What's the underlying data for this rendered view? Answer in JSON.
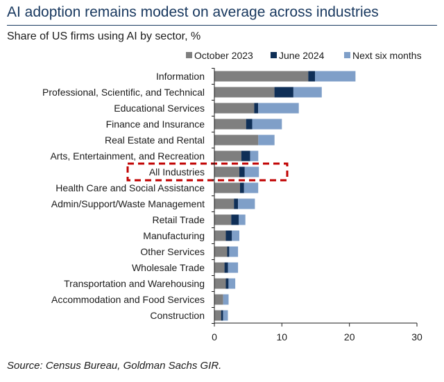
{
  "title": "AI adoption remains modest on average across industries",
  "subtitle": "Share of US firms using AI by sector, %",
  "source": "Source: Census Bureau, Goldman Sachs GIR.",
  "colors": {
    "October 2023": "#7f7f7f",
    "June 2024": "#0f2f57",
    "Next six months": "#7f9fc8",
    "highlight": "#c00000"
  },
  "chart_data": {
    "type": "bar",
    "orientation": "horizontal",
    "stacked": true,
    "categories": [
      "Information",
      "Professional, Scientific, and Technical",
      "Educational Services",
      "Finance and Insurance",
      "Real Estate and Rental",
      "Arts, Entertainment, and Recreation",
      "All Industries",
      "Health Care and Social Assistance",
      "Admin/Support/Waste Management",
      "Retail Trade",
      "Manufacturing",
      "Other Services",
      "Wholesale Trade",
      "Transportation and Warehousing",
      "Accommodation and Food Services",
      "Construction"
    ],
    "series": [
      {
        "name": "October 2023",
        "values": [
          13.9,
          8.9,
          5.9,
          4.7,
          6.5,
          4.0,
          3.7,
          3.8,
          2.9,
          2.5,
          1.7,
          1.9,
          1.5,
          1.7,
          1.3,
          1.0
        ]
      },
      {
        "name": "June 2024",
        "values": [
          1.0,
          2.8,
          0.6,
          0.9,
          0.0,
          1.3,
          0.8,
          0.6,
          0.6,
          1.1,
          0.9,
          0.3,
          0.5,
          0.4,
          0.0,
          0.3
        ]
      },
      {
        "name": "Next six months",
        "values": [
          6.0,
          4.2,
          6.0,
          4.4,
          2.4,
          1.2,
          2.1,
          2.1,
          2.5,
          1.0,
          1.1,
          1.3,
          1.5,
          1.0,
          0.8,
          0.7
        ]
      }
    ],
    "xlim": [
      0,
      30
    ],
    "xticks": [
      0,
      10,
      20,
      30
    ],
    "highlighted_category": "All Industries",
    "legend": "top-right",
    "grid": false
  }
}
